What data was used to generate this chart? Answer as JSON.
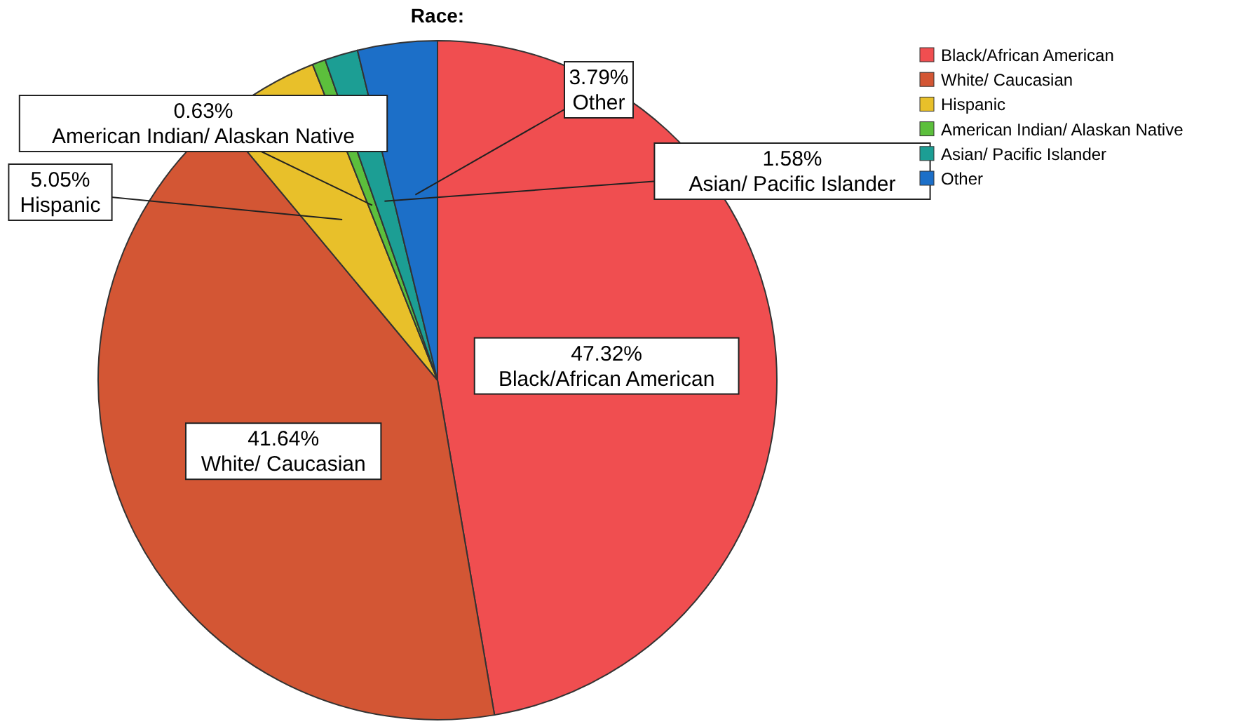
{
  "chart_data": {
    "type": "pie",
    "title": "Race:",
    "categories": [
      "Black/African American",
      "White/ Caucasian",
      "Hispanic",
      "American Indian/ Alaskan Native",
      "Asian/ Pacific Islander",
      "Other"
    ],
    "values": [
      47.32,
      41.64,
      5.05,
      0.63,
      1.58,
      3.79
    ],
    "colors": [
      "#f04e50",
      "#d35634",
      "#e8c02a",
      "#5cbf3c",
      "#1c9e94",
      "#1c6fc8"
    ],
    "value_labels": [
      "47.32%",
      "41.64%",
      "5.05%",
      "0.63%",
      "1.58%",
      "3.79%"
    ],
    "legend": "top right"
  }
}
